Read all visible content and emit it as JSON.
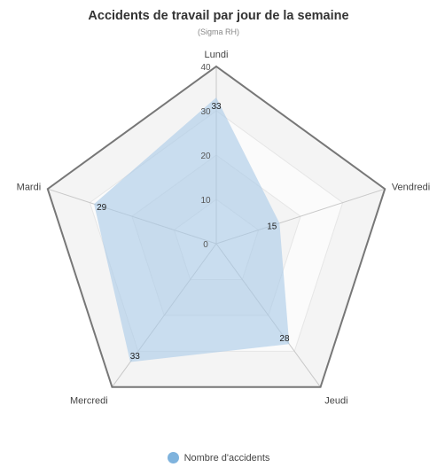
{
  "chart_data": {
    "type": "radar",
    "title": "Accidents de travail par jour de la semaine",
    "subtitle": "(Sigma RH)",
    "categories": [
      "Lundi",
      "Vendredi",
      "Jeudi",
      "Mercredi",
      "Mardi"
    ],
    "series": [
      {
        "name": "Nombre d'accidents",
        "values": [
          33,
          15,
          28,
          33,
          29
        ],
        "color": "#a9c9e8"
      }
    ],
    "rlim": [
      0,
      40
    ],
    "ticks": [
      "0",
      "10",
      "20",
      "30",
      "40"
    ],
    "grid": true,
    "legend_position": "bottom"
  }
}
